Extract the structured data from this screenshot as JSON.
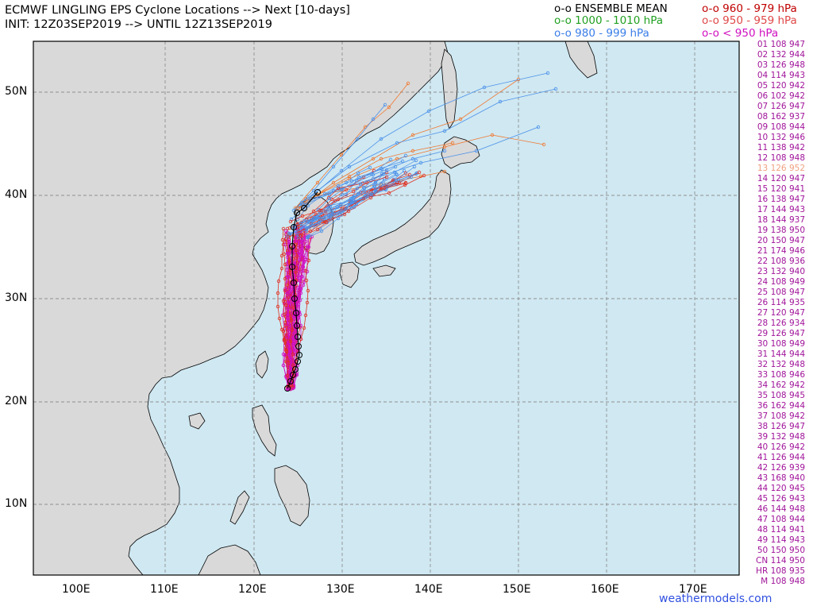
{
  "header": {
    "line1": "ECMWF LINGLING EPS Cyclone Locations --> Next [10-days]",
    "line2": "INIT: 12Z03SEP2019 --> UNTIL 12Z13SEP2019"
  },
  "legend": {
    "mean": {
      "label": "o-o ENSEMBLE MEAN",
      "color": "#000000"
    },
    "p1000": {
      "label": "o-o 1000 - 1010 hPa",
      "color": "#20a020"
    },
    "p980": {
      "label": "o-o 980 - 999 hPa",
      "color": "#3a7ee8"
    },
    "p960": {
      "label": "o-o 960 - 979 hPa",
      "color": "#c00000"
    },
    "p950": {
      "label": "o-o 950 - 959 hPa",
      "color": "#e04848"
    },
    "plt950": {
      "label": "o-o < 950 hPa",
      "color": "#d010c0"
    }
  },
  "axes": {
    "x_ticks": [
      "100E",
      "110E",
      "120E",
      "130E",
      "140E",
      "150E",
      "160E",
      "170E"
    ],
    "y_ticks": [
      "50N",
      "40N",
      "30N",
      "20N",
      "10N"
    ]
  },
  "colors": {
    "ocean": "#cfe8f2",
    "land": "#d9d9d9",
    "coast": "#000000",
    "grid": "#909090",
    "track_orange": "#f07830",
    "track_red": "#e03020",
    "track_blue": "#4a90e8",
    "track_magenta": "#d010c0",
    "member_text": "#a0149a",
    "credit": "#3050e0"
  },
  "members": [
    "01 108 947",
    "02 132 944",
    "03 126 948",
    "04 114 943",
    "05 120 942",
    "06 102 942",
    "07 126 947",
    "08 162 937",
    "09 108 944",
    "10 132 946",
    "11 138 942",
    "12 108 948",
    "13 126 952",
    "14 120 947",
    "15 120 941",
    "16 138 947",
    "17 144 943",
    "18 144 937",
    "19 138 950",
    "20 150 947",
    "21 174 946",
    "22 108 936",
    "23 132 940",
    "24 108 949",
    "25 108 947",
    "26 114 935",
    "27 120 947",
    "28 126 934",
    "29 126 947",
    "30 108 949",
    "31 144 944",
    "32 132 948",
    "33 108 946",
    "34 162 942",
    "35 108 945",
    "36 162 944",
    "37 108 942",
    "38 126 947",
    "39 132 948",
    "40 126 942",
    "41 126 944",
    "42 126 939",
    "43 168 940",
    "44 120 945",
    "45 126 943",
    "46 144 948",
    "47 108 944",
    "48 114 941",
    "49 114 943",
    "50 150 950",
    "CN 114 950",
    "HR 108 935",
    "M 108 948"
  ],
  "highlight_member": "13 126 952",
  "credit": "weathermodels.com"
}
